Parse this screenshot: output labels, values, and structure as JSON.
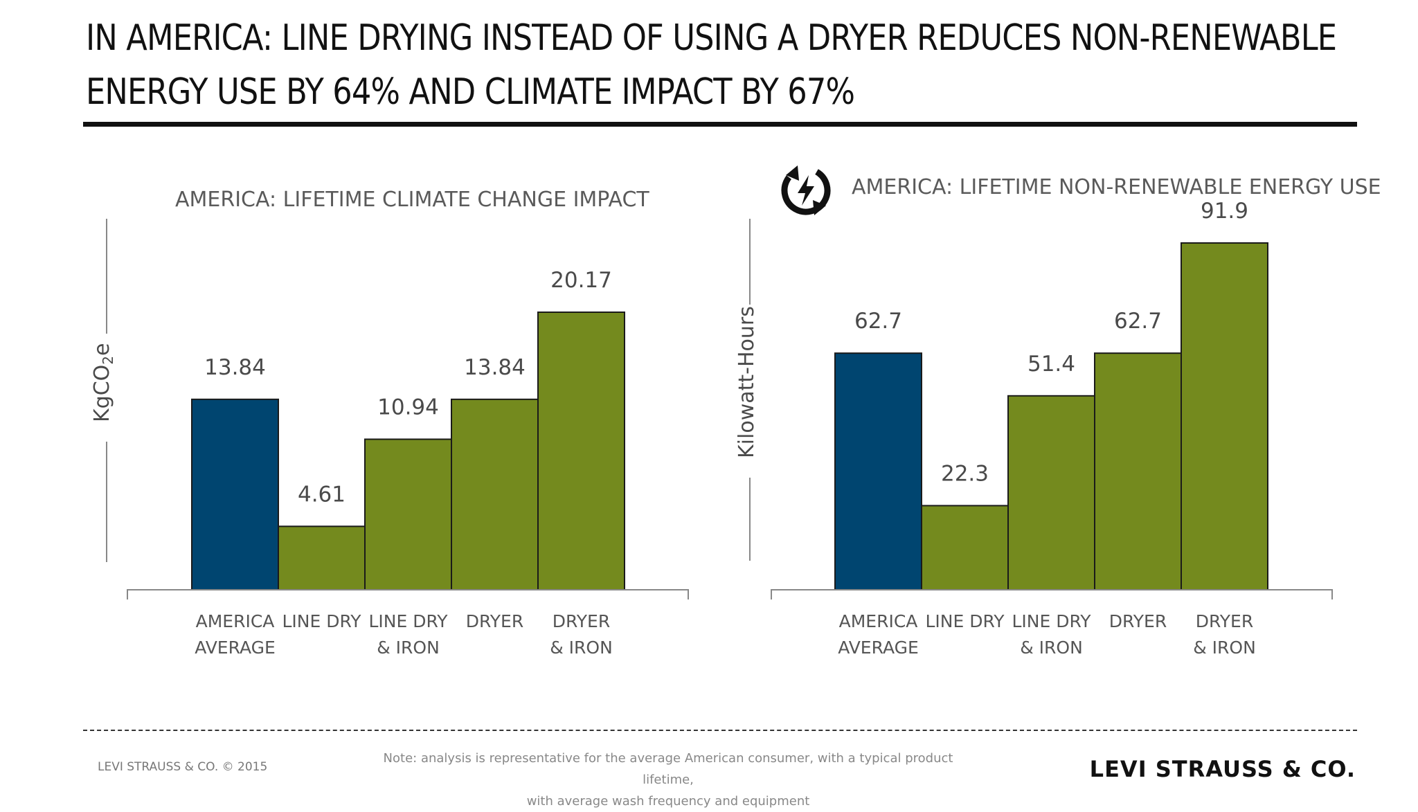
{
  "headline": {
    "line1": "IN AMERICA: LINE DRYING INSTEAD OF USING A DRYER REDUCES NON-RENEWABLE",
    "line2": "ENERGY USE BY 64% AND CLIMATE IMPACT BY 67%"
  },
  "colors": {
    "average": "#004570",
    "option": "#748a1e",
    "bar_stroke": "#1a1a1a"
  },
  "chart_data": [
    {
      "type": "bar",
      "title": "AMERICA: LIFETIME CLIMATE CHANGE IMPACT",
      "ylabel": "KgCO2e",
      "categories": [
        [
          "AMERICA",
          "AVERAGE"
        ],
        [
          "LINE DRY"
        ],
        [
          "LINE DRY",
          "& IRON"
        ],
        [
          "DRYER"
        ],
        [
          "DRYER",
          "& IRON"
        ]
      ],
      "values": [
        13.84,
        4.61,
        10.94,
        13.84,
        20.17
      ],
      "value_labels": [
        "13.84",
        "4.61",
        "10.94",
        "13.84",
        "20.17"
      ],
      "highlight_index": 0
    },
    {
      "type": "bar",
      "title": "AMERICA: LIFETIME NON-RENEWABLE ENERGY USE",
      "ylabel": "Kilowatt-Hours",
      "icon": "energy-cycle-icon",
      "categories": [
        [
          "AMERICA",
          "AVERAGE"
        ],
        [
          "LINE DRY"
        ],
        [
          "LINE DRY",
          "& IRON"
        ],
        [
          "DRYER"
        ],
        [
          "DRYER",
          "& IRON"
        ]
      ],
      "values": [
        62.7,
        22.3,
        51.4,
        62.7,
        91.9
      ],
      "value_labels": [
        "62.7",
        "22.3",
        "51.4",
        "62.7",
        "91.9"
      ],
      "highlight_index": 0
    }
  ],
  "footer": {
    "copyright": "LEVI STRAUSS & CO. © 2015",
    "note_line1": "Note: analysis is representative for the average American consumer, with a typical product lifetime,",
    "note_line2": "with average wash frequency and equipment",
    "brand": "LEVI STRAUSS & CO."
  }
}
